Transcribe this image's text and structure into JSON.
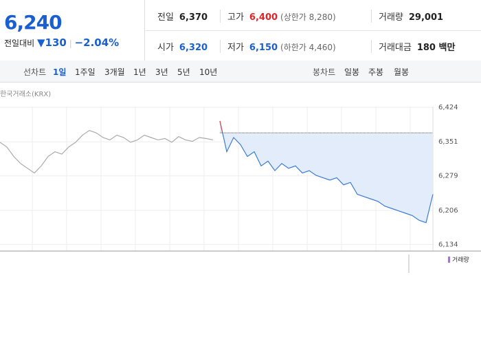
{
  "quote": {
    "price": "6,240",
    "change_label": "전일대비",
    "change": "130",
    "change_rate": "−2.04%"
  },
  "summary": [
    {
      "label": "전일",
      "value": "6,370"
    },
    {
      "label": "고가",
      "value": "6,400",
      "note": "(상한가 8,280)"
    },
    {
      "label": "거래량",
      "value": "29,001"
    },
    {
      "label": "시가",
      "value": "6,320"
    },
    {
      "label": "저가",
      "value": "6,150",
      "note": "(하한가 4,460)"
    },
    {
      "label": "거래대금",
      "value": "180 백만"
    }
  ],
  "toolbar": {
    "line_label": "선차트",
    "line_periods": [
      "1일",
      "1주일",
      "3개월",
      "1년",
      "3년",
      "5년",
      "10년"
    ],
    "candle_label": "봉차트",
    "candle_periods": [
      "일봉",
      "주봉",
      "월봉"
    ]
  },
  "chart_data": {
    "type": "line",
    "source": "한국거래소(KRX)",
    "legend_label": "거래량",
    "categories": [
      null,
      null,
      null,
      null,
      null,
      null,
      null,
      null,
      null,
      null,
      null,
      null,
      null,
      null,
      null,
      null,
      null,
      null,
      null,
      null,
      null,
      null,
      null,
      null,
      null,
      null,
      null,
      null,
      null,
      null,
      null,
      null,
      null,
      null,
      null,
      null,
      null,
      null,
      null,
      null,
      null,
      null,
      null,
      null,
      null,
      null,
      null,
      null,
      null,
      null,
      null,
      null,
      null,
      null,
      null,
      null,
      null,
      null,
      null,
      null,
      null,
      null,
      null,
      null
    ],
    "reference": 6370,
    "series": [
      {
        "color": "#aaaaaa",
        "values": [
          6350,
          6340,
          6320,
          6305,
          6295,
          6285,
          6300,
          6320,
          6330,
          6325,
          6340,
          6350,
          6365,
          6375,
          6370,
          6360,
          6355,
          6365,
          6360,
          6350,
          6355,
          6365,
          6360,
          6355,
          6358,
          6350,
          6362,
          6355,
          6352,
          6360,
          6358,
          6355,
          null,
          null,
          null,
          null,
          null,
          null,
          null,
          null,
          null,
          null,
          null,
          null,
          null,
          null,
          null,
          null,
          null,
          null,
          null,
          null,
          null,
          null,
          null,
          null,
          null,
          null,
          null,
          null,
          null,
          null,
          null,
          null
        ]
      },
      {
        "color": "#3b7bd6",
        "up_color": "#e84a4a",
        "fill": "#e3ecfa",
        "values": [
          null,
          null,
          null,
          null,
          null,
          null,
          null,
          null,
          null,
          null,
          null,
          null,
          null,
          null,
          null,
          null,
          null,
          null,
          null,
          null,
          null,
          null,
          null,
          null,
          null,
          null,
          null,
          null,
          null,
          null,
          null,
          null,
          6395,
          6330,
          6360,
          6345,
          6320,
          6330,
          6300,
          6310,
          6290,
          6305,
          6295,
          6300,
          6285,
          6290,
          6280,
          6275,
          6270,
          6275,
          6260,
          6265,
          6240,
          6235,
          6230,
          6225,
          6215,
          6210,
          6205,
          6200,
          6195,
          6185,
          6180,
          6240
        ]
      }
    ],
    "ylim": [
      6120,
      6440
    ],
    "yticks": [
      {
        "value": 6134,
        "label": "6,134"
      },
      {
        "value": 6206,
        "label": "6,206"
      },
      {
        "value": 6279,
        "label": "6,279"
      },
      {
        "value": 6351,
        "label": "6,351"
      },
      {
        "value": 6424,
        "label": "6,424"
      }
    ],
    "grid": true
  }
}
